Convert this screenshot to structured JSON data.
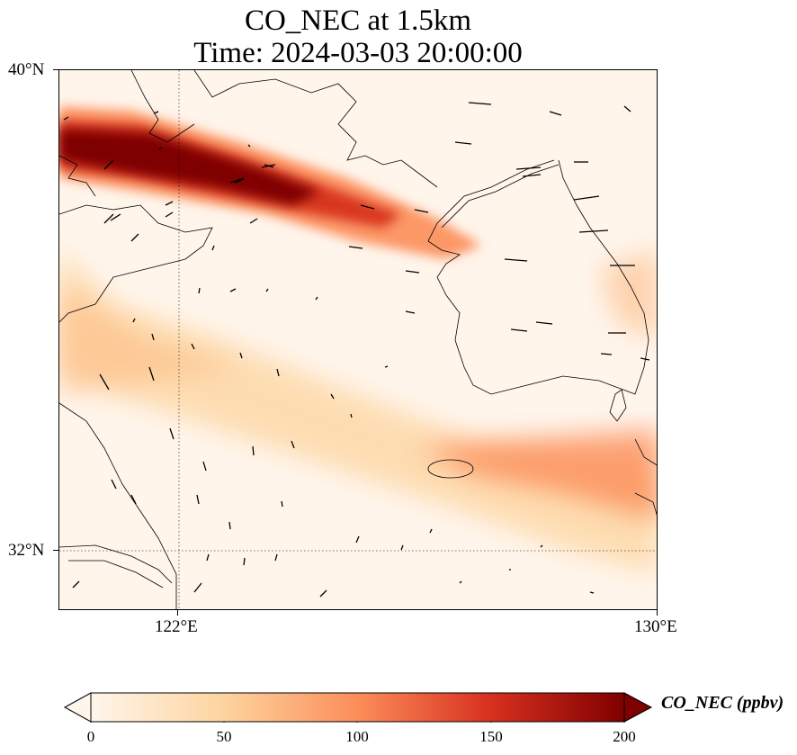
{
  "title": {
    "line1": "CO_NEC at 1.5km",
    "line2": "Time: 2024-03-03 20:00:00"
  },
  "axes": {
    "lat_labels": [
      "40°N",
      "32°N"
    ],
    "lon_labels": [
      "122°E",
      "130°E"
    ],
    "lon_range": [
      120,
      130
    ],
    "lat_range": [
      31,
      40
    ]
  },
  "colorbar": {
    "label": "CO_NEC (ppbv)",
    "ticks": [
      "0",
      "50",
      "100",
      "150",
      "200"
    ],
    "range": [
      0,
      200
    ],
    "colormap": "OrRd",
    "colors": [
      "#fff5eb",
      "#fdd49e",
      "#fc8d59",
      "#d7301f",
      "#7f0000"
    ]
  },
  "gridlines": {
    "longitude": 122,
    "latitude": 32,
    "style": "dotted"
  }
}
